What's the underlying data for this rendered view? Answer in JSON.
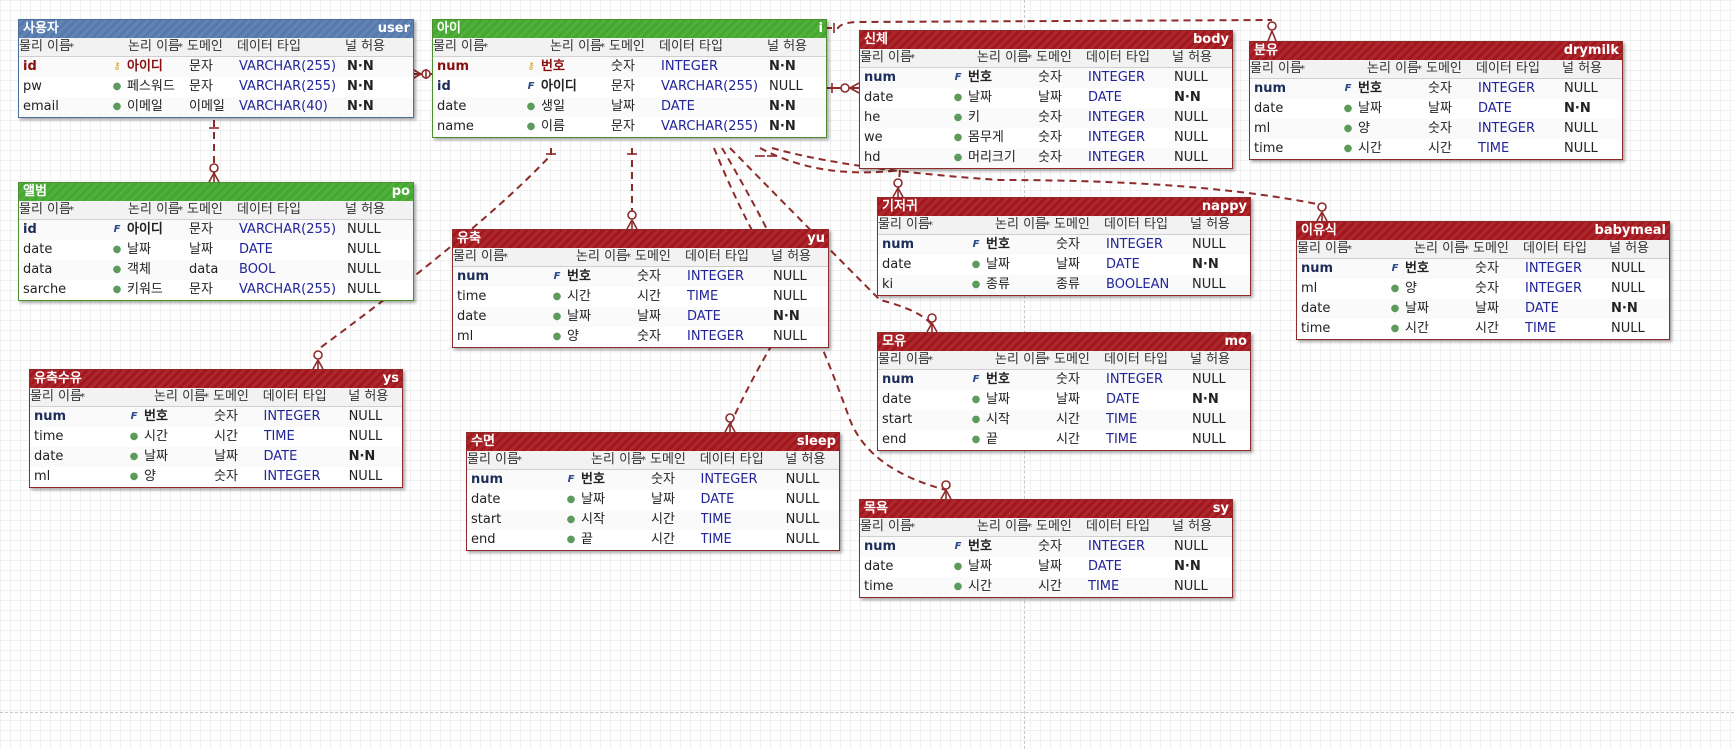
{
  "columns": {
    "physical": "물리 이름",
    "logical": "논리 이름",
    "domain": "도메인",
    "datatype": "데이터 타입",
    "nullable": "널 허용"
  },
  "entities": [
    {
      "id": "user",
      "title": "사용자",
      "name": "user",
      "color": "blue",
      "rows": [
        {
          "p": "id",
          "l": "아이디",
          "d": "문자",
          "t": "VARCHAR(255)",
          "n": "N·N",
          "icon": "key",
          "pk": true
        },
        {
          "p": "pw",
          "l": "페스워드",
          "d": "문자",
          "t": "VARCHAR(255)",
          "n": "N·N",
          "icon": "dot"
        },
        {
          "p": "email",
          "l": "이메일",
          "d": "이메일",
          "t": "VARCHAR(40)",
          "n": "N·N",
          "icon": "dot"
        }
      ]
    },
    {
      "id": "album",
      "title": "앨범",
      "name": "po",
      "color": "green",
      "rows": [
        {
          "p": "id",
          "l": "아이디",
          "d": "문자",
          "t": "VARCHAR(255)",
          "n": "NULL",
          "icon": "fk",
          "pk": true
        },
        {
          "p": "date",
          "l": "날짜",
          "d": "날짜",
          "t": "DATE",
          "n": "NULL",
          "icon": "dot"
        },
        {
          "p": "data",
          "l": "객체",
          "d": "data",
          "t": "BOOL",
          "n": "NULL",
          "icon": "dot"
        },
        {
          "p": "sarche",
          "l": "키워드",
          "d": "문자",
          "t": "VARCHAR(255)",
          "n": "NULL",
          "icon": "dot"
        }
      ]
    },
    {
      "id": "child",
      "title": "아이",
      "name": "i",
      "color": "green",
      "rows": [
        {
          "p": "num",
          "l": "번호",
          "d": "숫자",
          "t": "INTEGER",
          "n": "N·N",
          "icon": "key",
          "pk": true
        },
        {
          "p": "id",
          "l": "아이디",
          "d": "문자",
          "t": "VARCHAR(255)",
          "n": "NULL",
          "icon": "fk",
          "pk": true
        },
        {
          "p": "date",
          "l": "생일",
          "d": "날짜",
          "t": "DATE",
          "n": "N·N",
          "icon": "dot"
        },
        {
          "p": "name",
          "l": "이름",
          "d": "문자",
          "t": "VARCHAR(255)",
          "n": "N·N",
          "icon": "dot"
        }
      ]
    },
    {
      "id": "body",
      "title": "신체",
      "name": "body",
      "color": "red",
      "rows": [
        {
          "p": "num",
          "l": "번호",
          "d": "숫자",
          "t": "INTEGER",
          "n": "NULL",
          "icon": "fk",
          "pk": true
        },
        {
          "p": "date",
          "l": "날짜",
          "d": "날짜",
          "t": "DATE",
          "n": "N·N",
          "icon": "dot"
        },
        {
          "p": "he",
          "l": "키",
          "d": "숫자",
          "t": "INTEGER",
          "n": "NULL",
          "icon": "dot"
        },
        {
          "p": "we",
          "l": "몸무게",
          "d": "숫자",
          "t": "INTEGER",
          "n": "NULL",
          "icon": "dot"
        },
        {
          "p": "hd",
          "l": "머리크기",
          "d": "숫자",
          "t": "INTEGER",
          "n": "NULL",
          "icon": "dot"
        }
      ]
    },
    {
      "id": "drymilk",
      "title": "분유",
      "name": "drymilk",
      "color": "red",
      "rows": [
        {
          "p": "num",
          "l": "번호",
          "d": "숫자",
          "t": "INTEGER",
          "n": "NULL",
          "icon": "fk",
          "pk": true
        },
        {
          "p": "date",
          "l": "날짜",
          "d": "날짜",
          "t": "DATE",
          "n": "N·N",
          "icon": "dot"
        },
        {
          "p": "ml",
          "l": "양",
          "d": "숫자",
          "t": "INTEGER",
          "n": "NULL",
          "icon": "dot"
        },
        {
          "p": "time",
          "l": "시간",
          "d": "시간",
          "t": "TIME",
          "n": "NULL",
          "icon": "dot"
        }
      ]
    },
    {
      "id": "yu",
      "title": "유축",
      "name": "yu",
      "color": "red",
      "rows": [
        {
          "p": "num",
          "l": "번호",
          "d": "숫자",
          "t": "INTEGER",
          "n": "NULL",
          "icon": "fk",
          "pk": true
        },
        {
          "p": "time",
          "l": "시간",
          "d": "시간",
          "t": "TIME",
          "n": "NULL",
          "icon": "dot"
        },
        {
          "p": "date",
          "l": "날짜",
          "d": "날짜",
          "t": "DATE",
          "n": "N·N",
          "icon": "dot"
        },
        {
          "p": "ml",
          "l": "양",
          "d": "숫자",
          "t": "INTEGER",
          "n": "NULL",
          "icon": "dot"
        }
      ]
    },
    {
      "id": "nappy",
      "title": "기저귀",
      "name": "nappy",
      "color": "red",
      "rows": [
        {
          "p": "num",
          "l": "번호",
          "d": "숫자",
          "t": "INTEGER",
          "n": "NULL",
          "icon": "fk",
          "pk": true
        },
        {
          "p": "date",
          "l": "날짜",
          "d": "날짜",
          "t": "DATE",
          "n": "N·N",
          "icon": "dot"
        },
        {
          "p": "ki",
          "l": "종류",
          "d": "종류",
          "t": "BOOLEAN",
          "n": "NULL",
          "icon": "dot"
        }
      ]
    },
    {
      "id": "babymeal",
      "title": "이유식",
      "name": "babymeal",
      "color": "red",
      "rows": [
        {
          "p": "num",
          "l": "번호",
          "d": "숫자",
          "t": "INTEGER",
          "n": "NULL",
          "icon": "fk",
          "pk": true
        },
        {
          "p": "ml",
          "l": "양",
          "d": "숫자",
          "t": "INTEGER",
          "n": "NULL",
          "icon": "dot"
        },
        {
          "p": "date",
          "l": "날짜",
          "d": "날짜",
          "t": "DATE",
          "n": "N·N",
          "icon": "dot"
        },
        {
          "p": "time",
          "l": "시간",
          "d": "시간",
          "t": "TIME",
          "n": "NULL",
          "icon": "dot"
        }
      ]
    },
    {
      "id": "ys",
      "title": "유축수유",
      "name": "ys",
      "color": "red",
      "rows": [
        {
          "p": "num",
          "l": "번호",
          "d": "숫자",
          "t": "INTEGER",
          "n": "NULL",
          "icon": "fk",
          "pk": true
        },
        {
          "p": "time",
          "l": "시간",
          "d": "시간",
          "t": "TIME",
          "n": "NULL",
          "icon": "dot"
        },
        {
          "p": "date",
          "l": "날짜",
          "d": "날짜",
          "t": "DATE",
          "n": "N·N",
          "icon": "dot"
        },
        {
          "p": "ml",
          "l": "양",
          "d": "숫자",
          "t": "INTEGER",
          "n": "NULL",
          "icon": "dot"
        }
      ]
    },
    {
      "id": "mo",
      "title": "모유",
      "name": "mo",
      "color": "red",
      "rows": [
        {
          "p": "num",
          "l": "번호",
          "d": "숫자",
          "t": "INTEGER",
          "n": "NULL",
          "icon": "fk",
          "pk": true
        },
        {
          "p": "date",
          "l": "날짜",
          "d": "날짜",
          "t": "DATE",
          "n": "N·N",
          "icon": "dot"
        },
        {
          "p": "start",
          "l": "시작",
          "d": "시간",
          "t": "TIME",
          "n": "NULL",
          "icon": "dot"
        },
        {
          "p": "end",
          "l": "끝",
          "d": "시간",
          "t": "TIME",
          "n": "NULL",
          "icon": "dot"
        }
      ]
    },
    {
      "id": "sleep",
      "title": "수면",
      "name": "sleep",
      "color": "red",
      "rows": [
        {
          "p": "num",
          "l": "번호",
          "d": "숫자",
          "t": "INTEGER",
          "n": "NULL",
          "icon": "fk",
          "pk": true
        },
        {
          "p": "date",
          "l": "날짜",
          "d": "날짜",
          "t": "DATE",
          "n": "NULL",
          "icon": "dot"
        },
        {
          "p": "start",
          "l": "시작",
          "d": "시간",
          "t": "TIME",
          "n": "NULL",
          "icon": "dot"
        },
        {
          "p": "end",
          "l": "끝",
          "d": "시간",
          "t": "TIME",
          "n": "NULL",
          "icon": "dot"
        }
      ]
    },
    {
      "id": "sy",
      "title": "목욕",
      "name": "sy",
      "color": "red",
      "rows": [
        {
          "p": "num",
          "l": "번호",
          "d": "숫자",
          "t": "INTEGER",
          "n": "NULL",
          "icon": "fk",
          "pk": true
        },
        {
          "p": "date",
          "l": "날짜",
          "d": "날짜",
          "t": "DATE",
          "n": "N·N",
          "icon": "dot"
        },
        {
          "p": "time",
          "l": "시간",
          "d": "시간",
          "t": "TIME",
          "n": "NULL",
          "icon": "dot"
        }
      ]
    }
  ],
  "relationships": [
    {
      "from": "user",
      "to": "album",
      "style": "dashed"
    },
    {
      "from": "user",
      "to": "child",
      "style": "solid"
    },
    {
      "from": "child",
      "to": "body",
      "style": "solid"
    },
    {
      "from": "child",
      "to": "drymilk",
      "style": "dashed"
    },
    {
      "from": "child",
      "to": "ys",
      "style": "dashed"
    },
    {
      "from": "child",
      "to": "yu",
      "style": "dashed"
    },
    {
      "from": "child",
      "to": "sleep",
      "style": "dashed"
    },
    {
      "from": "child",
      "to": "nappy",
      "style": "dashed"
    },
    {
      "from": "child",
      "to": "babymeal",
      "style": "dashed"
    },
    {
      "from": "child",
      "to": "mo",
      "style": "dashed"
    },
    {
      "from": "child",
      "to": "sy",
      "style": "dashed"
    }
  ],
  "colors": {
    "relationship": "#8e2a2a",
    "blue_header": "#5579ad",
    "green_header": "#43a82e",
    "red_header": "#a3161c"
  }
}
